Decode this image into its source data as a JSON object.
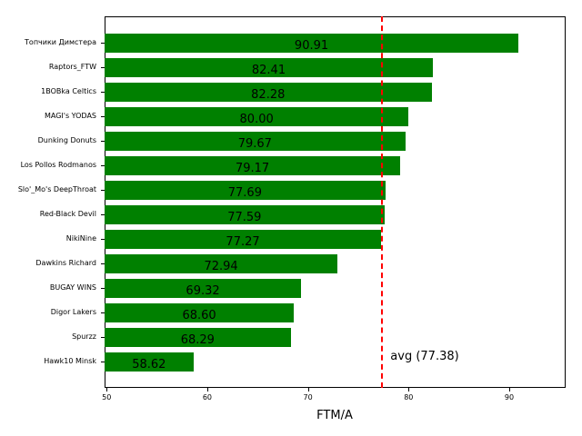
{
  "chart_data": {
    "type": "bar",
    "orientation": "horizontal",
    "xlabel": "FTM/A",
    "ylabel": "",
    "title": "",
    "xlim": [
      49.8,
      95.6
    ],
    "xticks": [
      50,
      60,
      70,
      80,
      90
    ],
    "grid": false,
    "bar_color": "#008000",
    "categories": [
      "Топчики Димстера",
      "Raptors_FTW",
      "1BOBka Celtics",
      "MAGI's YODAS",
      "Dunking Donuts",
      "Los Pollos Rodmanos",
      "Slo'_Mo's DeepThroat",
      "Red-Black Devil",
      "NikiNine",
      "Dawkins Richard",
      "BUGAY WINS",
      "Digor Lakers",
      "Spurzz",
      "Hawk10 Minsk"
    ],
    "values": [
      90.91,
      82.41,
      82.28,
      80.0,
      79.67,
      79.17,
      77.69,
      77.59,
      77.27,
      72.94,
      69.32,
      68.6,
      68.29,
      58.62
    ],
    "value_labels": [
      "90.91",
      "82.41",
      "82.28",
      "80.00",
      "79.67",
      "79.17",
      "77.69",
      "77.59",
      "77.27",
      "72.94",
      "69.32",
      "68.60",
      "68.29",
      "58.62"
    ],
    "annotations": [
      {
        "type": "vline",
        "x": 77.38,
        "style": "dashed",
        "color": "#ff0000",
        "label": "avg (77.38)"
      }
    ]
  }
}
